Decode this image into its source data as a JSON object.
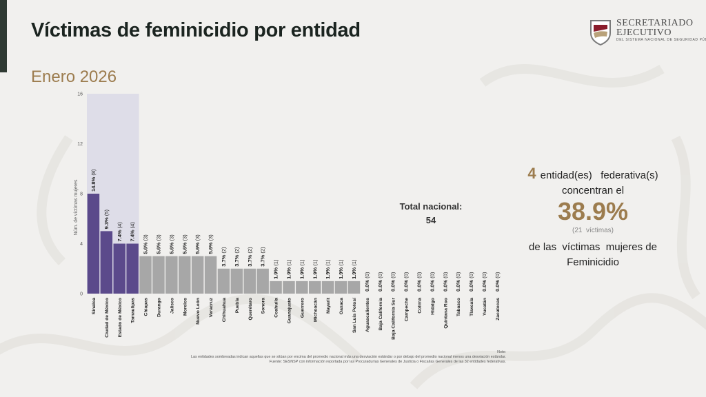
{
  "page": {
    "title": "Víctimas de feminicidio por entidad",
    "subtitle": "Enero 2026"
  },
  "logo": {
    "line1": "SECRETARIADO",
    "line2": "EJECUTIVO",
    "line3": "DEL SISTEMA NACIONAL DE SEGURIDAD PÚBLICA"
  },
  "total": {
    "label": "Total nacional:",
    "value": "54"
  },
  "summary": {
    "count": "4",
    "line1": "entidad(es)   federativa(s)",
    "line2": "concentran el",
    "percent": "38.9%",
    "victims": "(21  víctimas)",
    "line3": "de las  víctimas  mujeres de",
    "line4": "Feminicidio"
  },
  "note": {
    "label": "Note:",
    "line1": "Las entidades sombreadas indican aquellas que se sitúan por encima del promedio nacional más una desviación estándar o por debajo del promedio nacional menos una desviación estándar.",
    "line2": "Fuente: SESNSP con información reportada por las Procuradurías Generales de Justicia o Fiscalías Generales de las 32 entidades federativas."
  },
  "colors": {
    "highlight_bar": "#5b4a8b",
    "normal_bar": "#a7a7a7",
    "highlight_band": "#dad8e6",
    "accent_gold": "#9c7c4e"
  },
  "chart_data": {
    "type": "bar",
    "ylabel": "Núm. de víctimas mujeres",
    "ylim": [
      0,
      16
    ],
    "yticks": [
      0,
      4,
      8,
      12,
      16
    ],
    "grid": false,
    "categories": [
      "Sinaloa",
      "Ciudad de México",
      "Estado de México",
      "Tamaulipas",
      "Chiapas",
      "Durango",
      "Jalisco",
      "Morelos",
      "Nuevo León",
      "Veracruz",
      "Chihuahua",
      "Puebla",
      "Querétaro",
      "Sonora",
      "Coahuila",
      "Guanajuato",
      "Guerrero",
      "Michoacán",
      "Nayarit",
      "Oaxaca",
      "San Luis Potosí",
      "Aguascalientes",
      "Baja California",
      "Baja California Sur",
      "Campeche",
      "Colima",
      "Hidalgo",
      "Quintana Roo",
      "Tabasco",
      "Tlaxcala",
      "Yucatán",
      "Zacatecas"
    ],
    "values": [
      8,
      5,
      4,
      4,
      3,
      3,
      3,
      3,
      3,
      3,
      2,
      2,
      2,
      2,
      1,
      1,
      1,
      1,
      1,
      1,
      1,
      0,
      0,
      0,
      0,
      0,
      0,
      0,
      0,
      0,
      0,
      0
    ],
    "labels": [
      "14.8% (8)",
      "9.3% (5)",
      "7.4% (4)",
      "7.4% (4)",
      "5.6% (3)",
      "5.6% (3)",
      "5.6% (3)",
      "5.6% (3)",
      "5.6% (3)",
      "5.6% (3)",
      "3.7% (2)",
      "3.7% (2)",
      "3.7% (2)",
      "3.7% (2)",
      "1.9% (1)",
      "1.9% (1)",
      "1.9% (1)",
      "1.9% (1)",
      "1.9% (1)",
      "1.9% (1)",
      "1.9% (1)",
      "0.0% (0)",
      "0.0% (0)",
      "0.0% (0)",
      "0.0% (0)",
      "0.0% (0)",
      "0.0% (0)",
      "0.0% (0)",
      "0.0% (0)",
      "0.0% (0)",
      "0.0% (0)",
      "0.0% (0)"
    ],
    "highlighted": [
      true,
      true,
      true,
      true,
      false,
      false,
      false,
      false,
      false,
      false,
      false,
      false,
      false,
      false,
      false,
      false,
      false,
      false,
      false,
      false,
      false,
      false,
      false,
      false,
      false,
      false,
      false,
      false,
      false,
      false,
      false,
      false
    ]
  }
}
